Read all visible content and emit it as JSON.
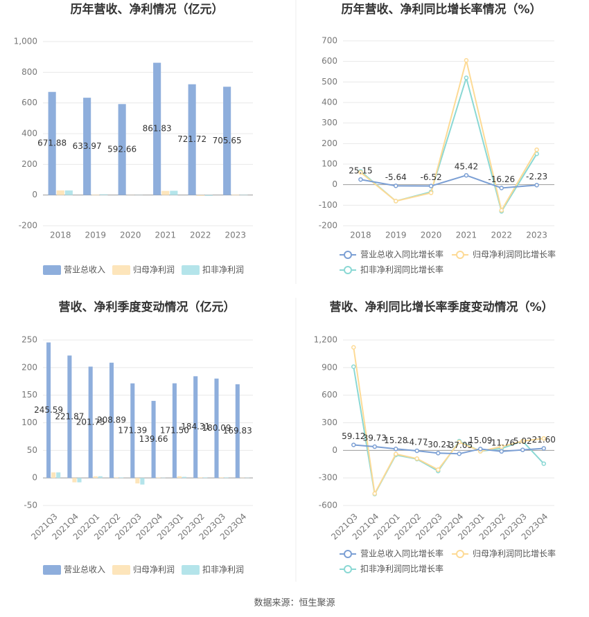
{
  "chart_data": [
    {
      "type": "bar",
      "title": "历年营收、净利情况（亿元）",
      "categories": [
        "2018",
        "2019",
        "2020",
        "2021",
        "2022",
        "2023"
      ],
      "series": [
        {
          "name": "营业总收入",
          "color": "#8eaedc",
          "data_labels": true,
          "values": [
            671.88,
            633.97,
            592.66,
            861.83,
            721.72,
            705.65
          ]
        },
        {
          "name": "归母净利润",
          "color": "#fde5bb",
          "values": [
            30,
            3,
            1,
            27,
            -5,
            3
          ]
        },
        {
          "name": "扣非净利润",
          "color": "#b4e4ea",
          "values": [
            30,
            5,
            1,
            28,
            -5,
            2
          ]
        }
      ],
      "ylim": [
        -200,
        1000
      ],
      "yticks": [
        -200,
        0,
        200,
        400,
        600,
        800,
        {
          "value": 1000,
          "label": "1,000"
        }
      ],
      "grid": true
    },
    {
      "type": "line",
      "title": "历年营收、净利同比增长率情况（%）",
      "categories": [
        "2018",
        "2019",
        "2020",
        "2021",
        "2022",
        "2023"
      ],
      "series": [
        {
          "name": "营业总收入同比增长率",
          "color": "#7b9fd4",
          "data_labels": true,
          "values": [
            25.15,
            -5.64,
            -6.52,
            45.42,
            -16.26,
            -2.23
          ]
        },
        {
          "name": "归母净利润同比增长率",
          "color": "#fdda95",
          "values": [
            60,
            -80,
            -40,
            605,
            -125,
            170
          ]
        },
        {
          "name": "扣非净利润同比增长率",
          "color": "#8ad8d4",
          "values": [
            65,
            -80,
            -35,
            520,
            -130,
            150
          ]
        }
      ],
      "ylim": [
        -200,
        700
      ],
      "yticks": [
        -200,
        -100,
        0,
        100,
        200,
        300,
        400,
        500,
        600,
        700
      ],
      "grid": true
    },
    {
      "type": "bar",
      "title": "营收、净利季度变动情况（亿元）",
      "categories": [
        "2021Q3",
        "2021Q4",
        "2022Q1",
        "2022Q2",
        "2022Q3",
        "2022Q4",
        "2023Q1",
        "2023Q2",
        "2023Q3",
        "2023Q4"
      ],
      "series": [
        {
          "name": "营业总收入",
          "color": "#8eaedc",
          "data_labels": true,
          "values": [
            245.59,
            221.87,
            201.75,
            208.89,
            171.39,
            139.66,
            171.5,
            184.31,
            180.09,
            169.83
          ],
          "value_labels": [
            "245.59",
            "221.87",
            "201.75",
            "208.89",
            "171.39",
            "139.66",
            "171.50",
            "184.31",
            "180.09",
            "169.83"
          ]
        },
        {
          "name": "归母净利润",
          "color": "#fde5bb",
          "values": [
            10,
            -8,
            3,
            1,
            -10,
            1,
            3,
            1,
            1,
            0.5
          ]
        },
        {
          "name": "扣非净利润",
          "color": "#b4e4ea",
          "values": [
            10,
            -8,
            3,
            1,
            -12,
            0.5,
            2,
            1,
            1,
            0.5
          ]
        }
      ],
      "ylim": [
        -50,
        250
      ],
      "yticks": [
        -50,
        0,
        50,
        100,
        150,
        200,
        250
      ],
      "grid": true
    },
    {
      "type": "line",
      "title": "营收、净利同比增长率季度变动情况（%）",
      "categories": [
        "2021Q3",
        "2021Q4",
        "2022Q1",
        "2022Q2",
        "2022Q3",
        "2022Q4",
        "2023Q1",
        "2023Q2",
        "2023Q3",
        "2023Q4"
      ],
      "series": [
        {
          "name": "营业总收入同比增长率",
          "color": "#7b9fd4",
          "data_labels": true,
          "values": [
            59.12,
            39.73,
            15.28,
            -4.77,
            -30.21,
            -37.05,
            15.09,
            -11.76,
            5.02,
            21.6
          ],
          "value_labels": [
            "59.12",
            "39.73",
            "15.28",
            "-4.77",
            "-30.21",
            "-37.05",
            "15.09",
            "-11.76",
            "5.02",
            "21.60"
          ]
        },
        {
          "name": "归母净利润同比增长率",
          "color": "#fdda95",
          "values": [
            1120,
            -470,
            -40,
            -90,
            -210,
            90,
            -10,
            40,
            100,
            130
          ]
        },
        {
          "name": "扣非净利润同比增长率",
          "color": "#8ad8d4",
          "values": [
            910,
            -475,
            -50,
            -95,
            -225,
            100,
            -10,
            20,
            100,
            -145
          ]
        }
      ],
      "ylim": [
        -600,
        1200
      ],
      "yticks": [
        -600,
        -300,
        0,
        300,
        600,
        900,
        {
          "value": 1200,
          "label": "1,200"
        }
      ],
      "grid": true
    }
  ],
  "source": "数据来源：恒生聚源"
}
